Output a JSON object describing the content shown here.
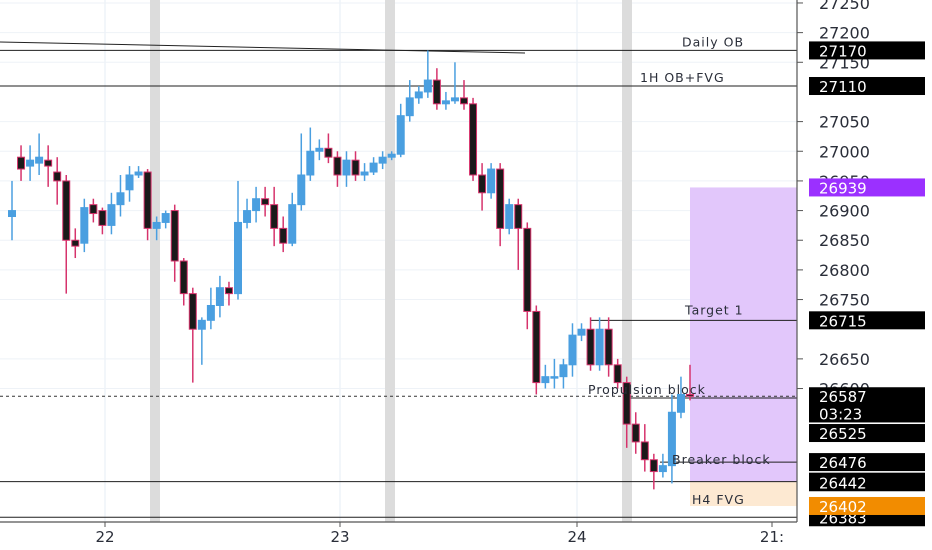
{
  "chart_data": {
    "type": "candlestick",
    "ylim": [
      26375,
      27255
    ],
    "y_ticks": [
      26600,
      26650,
      26750,
      26800,
      26850,
      26900,
      26950,
      27000,
      27050,
      27150,
      27200,
      27250
    ],
    "x_ticks": [
      "22",
      "23",
      "24",
      "21:"
    ],
    "colors": {
      "up": "#4a9fe0",
      "down": "#d6336c",
      "session_band": "#dcdcdc",
      "target_zone": "#e2c7fb",
      "fvg_zone": "#fde9d2"
    },
    "horizontal_levels": [
      {
        "label": "Daily OB",
        "price_tag": "27170",
        "price": 27170,
        "tag_color": "#000000"
      },
      {
        "label": "1H OB+FVG",
        "price_tag": "27110",
        "price": 27110,
        "tag_color": "#000000"
      },
      {
        "label": "Target 1",
        "price_tag": "26715",
        "price": 26715,
        "tag_color": "#000000"
      },
      {
        "label": "Propulsion block",
        "price_tag": "26584",
        "price": 26584,
        "tag_color": "#000000"
      },
      {
        "label": "Breaker block",
        "price_tag": "26476",
        "price": 26476,
        "tag_color": "#000000"
      },
      {
        "label": "",
        "price_tag": "26443",
        "price": 26443,
        "tag_color": "#000000"
      },
      {
        "label": "",
        "price_tag": "26383",
        "price": 26383,
        "tag_color": "#000000"
      }
    ],
    "price_tags": [
      {
        "text": "26939",
        "price": 26939,
        "color": "#9b30ff"
      },
      {
        "text": "26587",
        "price": 26587,
        "color": "#000000"
      },
      {
        "text": "03:23",
        "price": 26558,
        "color": "#000000"
      },
      {
        "text": "26525",
        "price": 26525,
        "color": "#000000"
      },
      {
        "text": "26442",
        "price": 26442,
        "color": "#000000"
      },
      {
        "text": "26402",
        "price": 26402,
        "color": "#f28c00"
      }
    ],
    "zone_labels": {
      "fvg": "H4 FVG"
    },
    "candles": [
      [
        26890,
        26900,
        26950,
        26850
      ],
      [
        26990,
        26970,
        27010,
        26950
      ],
      [
        26975,
        26985,
        27010,
        26950
      ],
      [
        26980,
        26990,
        27030,
        26960
      ],
      [
        26985,
        26975,
        27010,
        26940
      ],
      [
        26965,
        26950,
        26990,
        26910
      ],
      [
        26950,
        26850,
        26960,
        26760
      ],
      [
        26850,
        26840,
        26870,
        26820
      ],
      [
        26845,
        26905,
        26920,
        26830
      ],
      [
        26910,
        26895,
        26920,
        26880
      ],
      [
        26900,
        26875,
        26905,
        26860
      ],
      [
        26875,
        26910,
        26930,
        26860
      ],
      [
        26910,
        26930,
        26960,
        26890
      ],
      [
        26935,
        26960,
        26975,
        26915
      ],
      [
        26960,
        26965,
        26975,
        26955
      ],
      [
        26965,
        26870,
        26970,
        26850
      ],
      [
        26870,
        26880,
        26890,
        26850
      ],
      [
        26880,
        26895,
        26900,
        26870
      ],
      [
        26900,
        26815,
        26910,
        26780
      ],
      [
        26815,
        26760,
        26820,
        26740
      ],
      [
        26760,
        26700,
        26770,
        26610
      ],
      [
        26700,
        26715,
        26720,
        26640
      ],
      [
        26715,
        26740,
        26770,
        26700
      ],
      [
        26740,
        26770,
        26790,
        26720
      ],
      [
        26770,
        26760,
        26780,
        26740
      ],
      [
        26760,
        26880,
        26950,
        26750
      ],
      [
        26880,
        26900,
        26920,
        26870
      ],
      [
        26900,
        26920,
        26940,
        26880
      ],
      [
        26920,
        26910,
        26940,
        26890
      ],
      [
        26910,
        26870,
        26940,
        26840
      ],
      [
        26870,
        26845,
        26890,
        26830
      ],
      [
        26845,
        26910,
        26930,
        26840
      ],
      [
        26910,
        26960,
        27030,
        26900
      ],
      [
        26960,
        27000,
        27040,
        26950
      ],
      [
        27000,
        27005,
        27020,
        26985
      ],
      [
        27005,
        26990,
        27030,
        26980
      ],
      [
        26990,
        26960,
        27000,
        26940
      ],
      [
        26960,
        26985,
        27000,
        26940
      ],
      [
        26985,
        26960,
        27000,
        26950
      ],
      [
        26960,
        26965,
        26980,
        26950
      ],
      [
        26965,
        26980,
        26990,
        26960
      ],
      [
        26980,
        26990,
        27000,
        26970
      ],
      [
        26990,
        26995,
        27000,
        26985
      ],
      [
        26995,
        27060,
        27080,
        26990
      ],
      [
        27060,
        27090,
        27120,
        27050
      ],
      [
        27090,
        27100,
        27110,
        27080
      ],
      [
        27100,
        27120,
        27170,
        27090
      ],
      [
        27120,
        27080,
        27140,
        27070
      ],
      [
        27080,
        27085,
        27100,
        27070
      ],
      [
        27085,
        27090,
        27150,
        27080
      ],
      [
        27090,
        27080,
        27120,
        27070
      ],
      [
        27080,
        26960,
        27090,
        26950
      ],
      [
        26960,
        26930,
        26980,
        26900
      ],
      [
        26930,
        26970,
        26980,
        26920
      ],
      [
        26970,
        26870,
        26980,
        26840
      ],
      [
        26870,
        26910,
        26920,
        26860
      ],
      [
        26910,
        26870,
        26920,
        26800
      ],
      [
        26870,
        26730,
        26880,
        26700
      ],
      [
        26730,
        26610,
        26740,
        26590
      ],
      [
        26610,
        26620,
        26640,
        26600
      ],
      [
        26620,
        26620,
        26650,
        26600
      ],
      [
        26620,
        26640,
        26650,
        26600
      ],
      [
        26640,
        26690,
        26710,
        26620
      ],
      [
        26690,
        26700,
        26710,
        26680
      ],
      [
        26700,
        26640,
        26720,
        26630
      ],
      [
        26640,
        26700,
        26720,
        26630
      ],
      [
        26700,
        26640,
        26720,
        26620
      ],
      [
        26640,
        26610,
        26650,
        26600
      ],
      [
        26610,
        26540,
        26620,
        26500
      ],
      [
        26540,
        26510,
        26560,
        26490
      ],
      [
        26510,
        26480,
        26540,
        26460
      ],
      [
        26480,
        26460,
        26490,
        26430
      ],
      [
        26460,
        26470,
        26490,
        26450
      ],
      [
        26470,
        26560,
        26590,
        26440
      ],
      [
        26560,
        26590,
        26620,
        26550
      ],
      [
        26590,
        26587,
        26640,
        26580
      ]
    ]
  }
}
